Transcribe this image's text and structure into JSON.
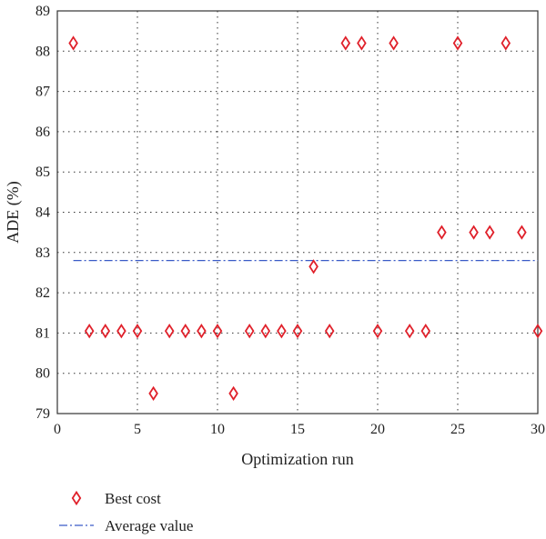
{
  "chart_data": {
    "type": "scatter",
    "xlabel": "Optimization run",
    "ylabel": "ADE (%)",
    "xlim": [
      0,
      30
    ],
    "ylim": [
      79,
      89
    ],
    "xticks": [
      0,
      5,
      10,
      15,
      20,
      25,
      30
    ],
    "yticks": [
      79,
      80,
      81,
      82,
      83,
      84,
      85,
      86,
      87,
      88,
      89
    ],
    "grid": true,
    "legend_position": "bottom-left",
    "series": [
      {
        "name": "Best cost",
        "marker": "diamond",
        "color": "#e0202a",
        "x": [
          1,
          2,
          3,
          4,
          5,
          6,
          7,
          8,
          9,
          10,
          11,
          12,
          13,
          14,
          15,
          16,
          17,
          18,
          19,
          20,
          21,
          22,
          23,
          24,
          25,
          26,
          27,
          28,
          29,
          30
        ],
        "y": [
          88.2,
          81.05,
          81.05,
          81.05,
          81.05,
          79.5,
          81.05,
          81.05,
          81.05,
          81.05,
          79.5,
          81.05,
          81.05,
          81.05,
          81.05,
          82.65,
          81.05,
          88.2,
          88.2,
          81.05,
          88.2,
          81.05,
          81.05,
          83.5,
          88.2,
          83.5,
          83.5,
          88.2,
          83.5,
          81.05
        ]
      },
      {
        "name": "Average value",
        "style": "dash-dot",
        "color": "#3a5bc7",
        "x": [
          1,
          30
        ],
        "y": [
          82.8,
          82.8
        ]
      }
    ]
  }
}
